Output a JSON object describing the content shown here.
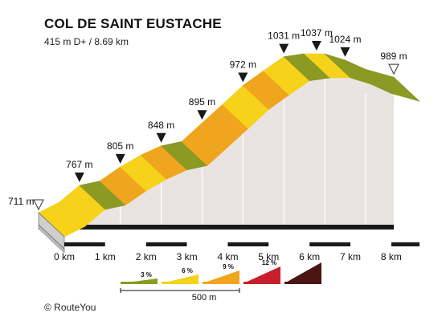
{
  "chart_data": {
    "type": "area",
    "title": "COL DE SAINT EUSTACHE",
    "subtitle": "415 m D+ / 8.69 km",
    "x_unit": "km",
    "y_unit": "m",
    "xlim": [
      0,
      8.69
    ],
    "ylim": [
      711,
      1037
    ],
    "profile": [
      {
        "km": 0.0,
        "elev": 711
      },
      {
        "km": 0.5,
        "elev": 732
      },
      {
        "km": 1.0,
        "elev": 767
      },
      {
        "km": 1.5,
        "elev": 776
      },
      {
        "km": 2.0,
        "elev": 805
      },
      {
        "km": 2.5,
        "elev": 829
      },
      {
        "km": 3.0,
        "elev": 848
      },
      {
        "km": 3.5,
        "elev": 857
      },
      {
        "km": 4.0,
        "elev": 895
      },
      {
        "km": 4.5,
        "elev": 933
      },
      {
        "km": 5.0,
        "elev": 972
      },
      {
        "km": 5.5,
        "elev": 1002
      },
      {
        "km": 6.0,
        "elev": 1031
      },
      {
        "km": 6.5,
        "elev": 1037
      },
      {
        "km": 7.0,
        "elev": 1037
      },
      {
        "km": 7.5,
        "elev": 1024
      },
      {
        "km": 8.0,
        "elev": 1005
      },
      {
        "km": 8.69,
        "elev": 989
      }
    ],
    "segment_colors": [
      "#f6d21a",
      "#f6d21a",
      "#8a9a22",
      "#f0a51f",
      "#f6d21a",
      "#f0a51f",
      "#8a9a22",
      "#f0a51f",
      "#f0a51f",
      "#f6d21a",
      "#f0a51f",
      "#f6d21a",
      "#8a9a22",
      "#f6d21a",
      "#8a9a22",
      "#8a9a22",
      "#8a9a22"
    ],
    "elevation_labels": [
      {
        "km": 0.0,
        "elev": 711,
        "label": "711 m",
        "marker": "start"
      },
      {
        "km": 1.0,
        "elev": 767,
        "label": "767 m",
        "marker": "point"
      },
      {
        "km": 2.0,
        "elev": 805,
        "label": "805 m",
        "marker": "point"
      },
      {
        "km": 3.0,
        "elev": 848,
        "label": "848 m",
        "marker": "point"
      },
      {
        "km": 4.0,
        "elev": 895,
        "label": "895 m",
        "marker": "point"
      },
      {
        "km": 5.0,
        "elev": 972,
        "label": "972 m",
        "marker": "point"
      },
      {
        "km": 6.0,
        "elev": 1031,
        "label": "1031 m",
        "marker": "point"
      },
      {
        "km": 6.8,
        "elev": 1037,
        "label": "1037 m",
        "marker": "point"
      },
      {
        "km": 7.5,
        "elev": 1024,
        "label": "1024 m",
        "marker": "point"
      },
      {
        "km": 8.69,
        "elev": 989,
        "label": "989 m",
        "marker": "end"
      }
    ],
    "x_ticks": [
      {
        "km": 0,
        "label": "0 km"
      },
      {
        "km": 1,
        "label": "1 km"
      },
      {
        "km": 2,
        "label": "2 km"
      },
      {
        "km": 3,
        "label": "3 km"
      },
      {
        "km": 4,
        "label": "4 km"
      },
      {
        "km": 5,
        "label": "5 km"
      },
      {
        "km": 6,
        "label": "6 km"
      },
      {
        "km": 7,
        "label": "7 km"
      },
      {
        "km": 8,
        "label": "8 km"
      }
    ],
    "legend": [
      {
        "label": "3 %",
        "color": "#8a9a22"
      },
      {
        "label": "6 %",
        "color": "#f6d21a"
      },
      {
        "label": "9 %",
        "color": "#f0a51f"
      },
      {
        "label": "12 %",
        "color": "#c8202a"
      },
      {
        "label": "",
        "color": "#4a1512"
      }
    ],
    "scale_label": "500 m"
  },
  "footer": {
    "copyright": "© RouteYou"
  }
}
